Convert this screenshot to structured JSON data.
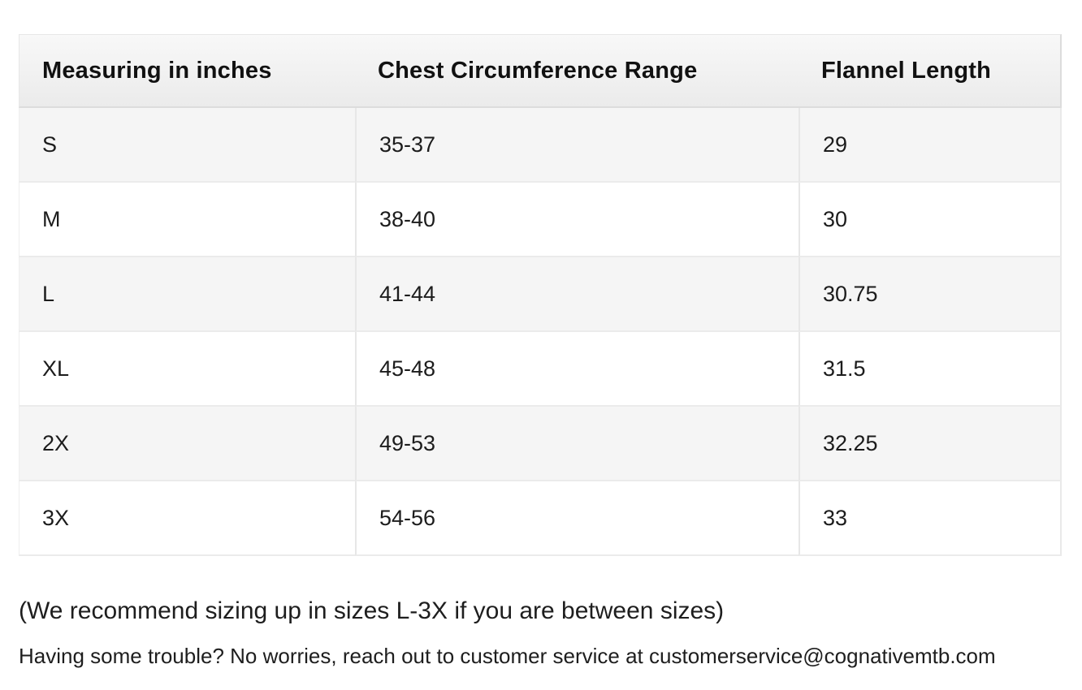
{
  "size_chart": {
    "columns": {
      "measuring": "Measuring in inches",
      "chest": "Chest Circumference Range",
      "length": "Flannel Length"
    },
    "rows": [
      {
        "size": "S",
        "chest": "35-37",
        "length": "29"
      },
      {
        "size": "M",
        "chest": "38-40",
        "length": "30"
      },
      {
        "size": "L",
        "chest": "41-44",
        "length": "30.75"
      },
      {
        "size": "XL",
        "chest": "45-48",
        "length": "31.5"
      },
      {
        "size": "2X",
        "chest": "49-53",
        "length": "32.25"
      },
      {
        "size": "3X",
        "chest": "54-56",
        "length": "33"
      }
    ]
  },
  "notes": {
    "sizing_recommendation": "(We recommend sizing up in sizes L-3X if you are between sizes)",
    "support_prefix": "Having some trouble? No worries, reach out to customer service at ",
    "support_email": "customerservice@cognativemtb.com"
  },
  "colors": {
    "header_gradient_top": "#f8f8f8",
    "header_gradient_bottom": "#ebebeb",
    "row_stripe": "#f5f5f5",
    "row_plain": "#ffffff",
    "border": "#e7e7e7",
    "text": "#1c1c1c"
  }
}
